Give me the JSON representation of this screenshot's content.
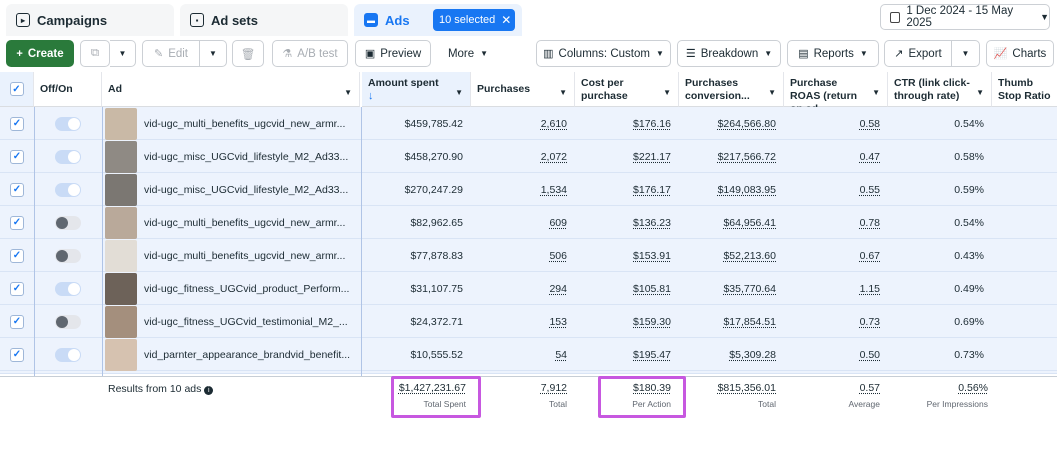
{
  "tabs": {
    "campaigns": "Campaigns",
    "adsets": "Ad sets",
    "ads": "Ads",
    "selected_pill": "10 selected",
    "date_range": "1 Dec 2024 - 15 May 2025"
  },
  "toolbar": {
    "create": "Create",
    "edit": "Edit",
    "ab_test": "A/B test",
    "preview": "Preview",
    "more": "More",
    "columns": "Columns: Custom",
    "breakdown": "Breakdown",
    "reports": "Reports",
    "export": "Export",
    "charts": "Charts"
  },
  "columns": {
    "offon": "Off/On",
    "ad": "Ad",
    "amount_spent": "Amount spent",
    "purchases": "Purchases",
    "cost_per_purchase": "Cost per purchase",
    "purchases_conversion": "Purchases conversion...",
    "purchase_roas": "Purchase ROAS (return on ad...",
    "ctr": "CTR (link click-through rate)",
    "thumb_stop": "Thumb Stop Ratio"
  },
  "rows": [
    {
      "name": "vid-ugc_multi_benefits_ugcvid_new_armr...",
      "on": true,
      "spent": "$459,785.42",
      "purchases": "2,610",
      "cpp": "$176.16",
      "conv": "$264,566.80",
      "roas": "0.58",
      "ctr": "0.54%",
      "thumb": "#c9b9a6"
    },
    {
      "name": "vid-ugc_misc_UGCvid_lifestyle_M2_Ad33...",
      "on": true,
      "spent": "$458,270.90",
      "purchases": "2,072",
      "cpp": "$221.17",
      "conv": "$217,566.72",
      "roas": "0.47",
      "ctr": "0.58%",
      "thumb": "#8f8a84"
    },
    {
      "name": "vid-ugc_misc_UGCvid_lifestyle_M2_Ad33...",
      "on": true,
      "spent": "$270,247.29",
      "purchases": "1,534",
      "cpp": "$176.17",
      "conv": "$149,083.95",
      "roas": "0.55",
      "ctr": "0.59%",
      "thumb": "#7b7772"
    },
    {
      "name": "vid-ugc_multi_benefits_ugcvid_new_armr...",
      "on": false,
      "spent": "$82,962.65",
      "purchases": "609",
      "cpp": "$136.23",
      "conv": "$64,956.41",
      "roas": "0.78",
      "ctr": "0.54%",
      "thumb": "#b9a99a"
    },
    {
      "name": "vid-ugc_multi_benefits_ugcvid_new_armr...",
      "on": false,
      "spent": "$77,878.83",
      "purchases": "506",
      "cpp": "$153.91",
      "conv": "$52,213.60",
      "roas": "0.67",
      "ctr": "0.43%",
      "thumb": "#e2ddd6"
    },
    {
      "name": "vid-ugc_fitness_UGCvid_product_Perform...",
      "on": true,
      "spent": "$31,107.75",
      "purchases": "294",
      "cpp": "$105.81",
      "conv": "$35,770.64",
      "roas": "1.15",
      "ctr": "0.49%",
      "thumb": "#6d6259"
    },
    {
      "name": "vid-ugc_fitness_UGCvid_testimonial_M2_...",
      "on": false,
      "spent": "$24,372.71",
      "purchases": "153",
      "cpp": "$159.30",
      "conv": "$17,854.51",
      "roas": "0.73",
      "ctr": "0.69%",
      "thumb": "#a48f7d"
    },
    {
      "name": "vid_parnter_appearance_brandvid_benefit...",
      "on": true,
      "spent": "$10,555.52",
      "purchases": "54",
      "cpp": "$195.47",
      "conv": "$5,309.28",
      "roas": "0.50",
      "ctr": "0.73%",
      "thumb": "#d6c2b0"
    }
  ],
  "footer": {
    "results": "Results from 10 ads",
    "spent": "$1,427,231.67",
    "spent_sub": "Total Spent",
    "purchases": "7,912",
    "purchases_sub": "Total",
    "cpp": "$180.39",
    "cpp_sub": "Per Action",
    "conv": "$815,356.01",
    "conv_sub": "Total",
    "roas": "0.57",
    "roas_sub": "Average",
    "ctr": "0.56%",
    "ctr_sub": "Per Impressions"
  },
  "colors": {
    "accent": "#1877f2",
    "create_green": "#2a7a3b",
    "highlight_box": "#c758e0",
    "row_selected": "#edf3fd"
  }
}
